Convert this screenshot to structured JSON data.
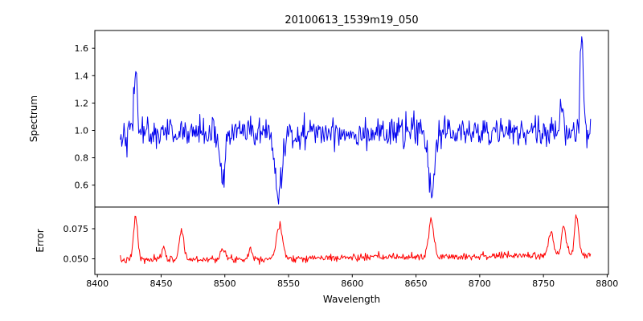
{
  "figure": {
    "title": "20100613_1539m19_050",
    "background": "#ffffff"
  },
  "chart_data": {
    "type": "line",
    "title": "20100613_1539m19_050",
    "xlabel": "Wavelength",
    "xlim": [
      8398,
      8801
    ],
    "x_range_data": [
      8418,
      8787
    ],
    "x_ticks": [
      "8400",
      "8450",
      "8500",
      "8550",
      "8600",
      "8650",
      "8700",
      "8750",
      "8800"
    ],
    "x_tick_values": [
      8400,
      8450,
      8500,
      8550,
      8600,
      8650,
      8700,
      8750,
      8800
    ],
    "grid": false,
    "legend": false,
    "subplots": [
      {
        "name": "spectrum",
        "ylabel": "Spectrum",
        "ylim": [
          0.44,
          1.73
        ],
        "y_ticks": [
          "0.6",
          "0.8",
          "1.0",
          "1.2",
          "1.4",
          "1.6"
        ],
        "y_tick_values": [
          0.6,
          0.8,
          1.0,
          1.2,
          1.4,
          1.6
        ],
        "color": "#0000ee",
        "baseline": 0.985,
        "trend": 0.0,
        "noise_sigma": 0.055,
        "features": [
          {
            "center": 8430,
            "amplitude": 0.48,
            "sigma": 1.2
          },
          {
            "center": 8498,
            "amplitude": -0.36,
            "sigma": 2.0
          },
          {
            "center": 8542,
            "amplitude": -0.46,
            "sigma": 2.8
          },
          {
            "center": 8662,
            "amplitude": -0.44,
            "sigma": 2.2
          },
          {
            "center": 8764,
            "amplitude": 0.22,
            "sigma": 1.5
          },
          {
            "center": 8780,
            "amplitude": 0.68,
            "sigma": 1.3
          }
        ],
        "key_points": [
          [
            8420,
            0.98
          ],
          [
            8430,
            1.48
          ],
          [
            8440,
            0.97
          ],
          [
            8460,
            1.0
          ],
          [
            8480,
            0.98
          ],
          [
            8498,
            0.63
          ],
          [
            8510,
            1.0
          ],
          [
            8530,
            0.97
          ],
          [
            8542,
            0.53
          ],
          [
            8560,
            1.0
          ],
          [
            8580,
            1.02
          ],
          [
            8600,
            1.0
          ],
          [
            8620,
            0.98
          ],
          [
            8640,
            1.0
          ],
          [
            8662,
            0.55
          ],
          [
            8680,
            0.97
          ],
          [
            8700,
            1.0
          ],
          [
            8720,
            0.97
          ],
          [
            8740,
            0.95
          ],
          [
            8764,
            1.22
          ],
          [
            8780,
            1.66
          ],
          [
            8787,
            1.0
          ]
        ]
      },
      {
        "name": "error",
        "ylabel": "Error",
        "ylim": [
          0.037,
          0.093
        ],
        "y_ticks": [
          "0.050",
          "0.075"
        ],
        "y_tick_values": [
          0.05,
          0.075
        ],
        "color": "#ff0000",
        "baseline": 0.0488,
        "trend": 0.0045,
        "noise_sigma": 0.0015,
        "features": [
          {
            "center": 8430,
            "amplitude": 0.036,
            "sigma": 1.6
          },
          {
            "center": 8452,
            "amplitude": 0.01,
            "sigma": 1.5
          },
          {
            "center": 8466,
            "amplitude": 0.024,
            "sigma": 1.8
          },
          {
            "center": 8498,
            "amplitude": 0.008,
            "sigma": 2.0
          },
          {
            "center": 8520,
            "amplitude": 0.008,
            "sigma": 1.5
          },
          {
            "center": 8543,
            "amplitude": 0.026,
            "sigma": 2.5
          },
          {
            "center": 8662,
            "amplitude": 0.03,
            "sigma": 2.0
          },
          {
            "center": 8756,
            "amplitude": 0.018,
            "sigma": 2.0
          },
          {
            "center": 8766,
            "amplitude": 0.024,
            "sigma": 1.8
          },
          {
            "center": 8776,
            "amplitude": 0.032,
            "sigma": 1.6
          }
        ],
        "key_points": [
          [
            8420,
            0.049
          ],
          [
            8430,
            0.086
          ],
          [
            8440,
            0.049
          ],
          [
            8452,
            0.06
          ],
          [
            8466,
            0.072
          ],
          [
            8480,
            0.05
          ],
          [
            8498,
            0.057
          ],
          [
            8510,
            0.05
          ],
          [
            8520,
            0.057
          ],
          [
            8532,
            0.05
          ],
          [
            8543,
            0.075
          ],
          [
            8560,
            0.051
          ],
          [
            8580,
            0.049
          ],
          [
            8600,
            0.051
          ],
          [
            8620,
            0.051
          ],
          [
            8640,
            0.052
          ],
          [
            8662,
            0.08
          ],
          [
            8680,
            0.051
          ],
          [
            8700,
            0.052
          ],
          [
            8720,
            0.053
          ],
          [
            8740,
            0.054
          ],
          [
            8756,
            0.07
          ],
          [
            8766,
            0.075
          ],
          [
            8776,
            0.085
          ],
          [
            8787,
            0.055
          ]
        ]
      }
    ]
  }
}
